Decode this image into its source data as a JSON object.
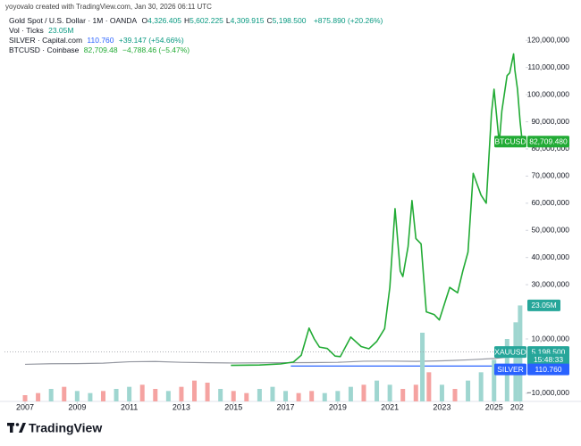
{
  "header": {
    "credit": "yoyovalo created with TradingView.com, Jan 30, 2026 06:11 UTC",
    "gold": {
      "name": "Gold Spot / U.S. Dollar · 1M · OANDA",
      "ohlc": [
        [
          "O",
          "4,326.405"
        ],
        [
          "H",
          "5,602.225"
        ],
        [
          "L",
          "4,309.915"
        ],
        [
          "C",
          "5,198.500"
        ]
      ],
      "change": "+875.890 (+20.26%)"
    },
    "volume": {
      "name": "Vol · Ticks",
      "value": "23.05M"
    },
    "silver": {
      "name": "SILVER · Capital.com",
      "value": "110.760",
      "change": "+39.147 (+54.66%)"
    },
    "btc": {
      "name": "BTCUSD · Coinbase",
      "value": "82,709.48",
      "change": "−4,788.46 (−5.47%)"
    }
  },
  "chart_data": {
    "type": "line",
    "grid": false,
    "xlim": [
      2006.21,
      2026.21
    ],
    "xticks": [
      2007,
      2009,
      2011,
      2013,
      2015,
      2017,
      2019,
      2021,
      2023,
      2025,
      {
        "value": 2026,
        "label": "202"
      }
    ],
    "ylim": [
      -13000000,
      125000000
    ],
    "yticks": [
      {
        "value": -10000000,
        "label": "−10,000,000"
      },
      {
        "value": 10000000,
        "label": "10,000,000"
      },
      {
        "value": 30000000,
        "label": "30,000,000"
      },
      {
        "value": 40000000,
        "label": "40,000,000"
      },
      {
        "value": 50000000,
        "label": "50,000,000"
      },
      {
        "value": 60000000,
        "label": "60,000,000"
      },
      {
        "value": 70000000,
        "label": "70,000,000"
      },
      {
        "value": 80000000,
        "label": "80,000,000"
      },
      {
        "value": 90000000,
        "label": "90,000,000"
      },
      {
        "value": 100000000,
        "label": "100,000,000"
      },
      {
        "value": 110000000,
        "label": "110,000,000"
      },
      {
        "value": 120000000,
        "label": "120,000,000"
      }
    ],
    "y2lim": [
      0,
      90000000
    ],
    "series": [
      {
        "name": "BTCUSD",
        "color": "#22ab35",
        "x": [
          2014.9,
          2016.0,
          2016.8,
          2017.3,
          2017.6,
          2017.9,
          2018.1,
          2018.3,
          2018.6,
          2018.9,
          2019.1,
          2019.5,
          2019.9,
          2020.2,
          2020.5,
          2020.8,
          2021.0,
          2021.2,
          2021.4,
          2021.5,
          2021.7,
          2021.85,
          2022.0,
          2022.2,
          2022.4,
          2022.7,
          2022.9,
          2023.1,
          2023.3,
          2023.6,
          2023.8,
          2024.0,
          2024.2,
          2024.5,
          2024.7,
          2024.9,
          2025.0,
          2025.2,
          2025.3,
          2025.5,
          2025.6,
          2025.75,
          2025.8,
          2025.9,
          2026.0,
          2026.08
        ],
        "values": [
          300000,
          400000,
          800000,
          1500000,
          4000000,
          14000000,
          10000000,
          7000000,
          6500000,
          3700000,
          3500000,
          10700000,
          7200000,
          6400000,
          9100000,
          13800000,
          29000000,
          58000000,
          35000000,
          33000000,
          44000000,
          61000000,
          47000000,
          45000000,
          20000000,
          19000000,
          17000000,
          23000000,
          29000000,
          27000000,
          35000000,
          42000000,
          71000000,
          63000000,
          60000000,
          93000000,
          102000000,
          82000000,
          94000000,
          107000000,
          108000000,
          115000000,
          109000000,
          102000000,
          90000000,
          82709480
        ],
        "value_labels": [
          null,
          null,
          null,
          null,
          null,
          null,
          null,
          null,
          null,
          null,
          null,
          null,
          null,
          null,
          null,
          null,
          null,
          null,
          null,
          null,
          null,
          null,
          null,
          null,
          null,
          null,
          null,
          null,
          null,
          null,
          null,
          null,
          null,
          null,
          null,
          null,
          null,
          null,
          null,
          null,
          null,
          null,
          null,
          null,
          null,
          "82,709.480"
        ]
      },
      {
        "name": "XAUUSD",
        "color": "#9598a1",
        "countdown": "15:48:33",
        "x": [
          2007,
          2008,
          2009,
          2010,
          2011,
          2012,
          2013,
          2014,
          2015,
          2016,
          2017,
          2018,
          2019,
          2020,
          2021,
          2022,
          2023,
          2024,
          2025,
          2025.5,
          2025.8,
          2026.08
        ],
        "values": [
          650000,
          880000,
          930000,
          1100000,
          1600000,
          1700000,
          1400000,
          1250000,
          1150000,
          1200000,
          1250000,
          1300000,
          1400000,
          1800000,
          1850000,
          1750000,
          1950000,
          2300000,
          2800000,
          3300000,
          4000000,
          5198500
        ],
        "value_labels": [
          null,
          null,
          null,
          null,
          null,
          null,
          null,
          null,
          null,
          null,
          null,
          null,
          null,
          null,
          null,
          null,
          null,
          null,
          null,
          null,
          null,
          "5,198.500"
        ]
      },
      {
        "name": "SILVER",
        "color": "#2962ff",
        "x": [
          2017.2,
          2018,
          2019,
          2020,
          2021,
          2022,
          2023,
          2024,
          2025,
          2025.5,
          2025.8,
          2026.08
        ],
        "values": [
          17000,
          16000,
          16000,
          18000,
          26000,
          22000,
          23000,
          23000,
          30000,
          36000,
          50000,
          110760
        ],
        "value_labels": [
          null,
          null,
          null,
          null,
          null,
          null,
          null,
          null,
          null,
          null,
          null,
          "110.760"
        ]
      },
      {
        "type": "bar",
        "axis": "y2",
        "x": [
          2007.0,
          2007.5,
          2008.0,
          2008.5,
          2009.0,
          2009.5,
          2010.0,
          2010.5,
          2011.0,
          2011.5,
          2012.0,
          2012.5,
          2013.0,
          2013.5,
          2014.0,
          2014.5,
          2015.0,
          2015.5,
          2016.0,
          2016.5,
          2017.0,
          2017.5,
          2018.0,
          2018.5,
          2019.0,
          2019.5,
          2020.0,
          2020.5,
          2021.0,
          2021.5,
          2022.0,
          2022.25,
          2022.5,
          2023.0,
          2023.5,
          2024.0,
          2024.5,
          2025.0,
          2025.5,
          2025.83,
          2026.0
        ],
        "values": [
          1500000,
          2000000,
          3000000,
          3500000,
          2500000,
          2000000,
          2500000,
          3000000,
          3500000,
          4000000,
          3000000,
          2500000,
          3500000,
          5000000,
          4500000,
          3000000,
          2500000,
          2000000,
          3000000,
          3500000,
          2500000,
          2000000,
          2500000,
          2000000,
          2500000,
          3500000,
          4000000,
          5000000,
          4000000,
          3000000,
          4000000,
          16500000,
          7000000,
          4000000,
          3000000,
          5000000,
          7000000,
          10000000,
          15000000,
          19000000,
          23050000
        ],
        "value_labels": [
          null,
          null,
          null,
          null,
          null,
          null,
          null,
          null,
          null,
          null,
          null,
          null,
          null,
          null,
          null,
          null,
          null,
          null,
          null,
          null,
          null,
          null,
          null,
          null,
          null,
          null,
          null,
          null,
          null,
          null,
          null,
          null,
          null,
          null,
          null,
          null,
          null,
          null,
          null,
          null,
          "23.05M"
        ],
        "colors": [
          "#f5a3a1",
          "#f5a3a1",
          "#9fd6d0",
          "#f5a3a1",
          "#9fd6d0",
          "#9fd6d0",
          "#f5a3a1",
          "#9fd6d0",
          "#9fd6d0",
          "#f5a3a1",
          "#f5a3a1",
          "#9fd6d0",
          "#f5a3a1",
          "#f5a3a1",
          "#f5a3a1",
          "#9fd6d0",
          "#f5a3a1",
          "#f5a3a1",
          "#9fd6d0",
          "#9fd6d0",
          "#9fd6d0",
          "#f5a3a1",
          "#f5a3a1",
          "#9fd6d0",
          "#9fd6d0",
          "#9fd6d0",
          "#f5a3a1",
          "#9fd6d0",
          "#9fd6d0",
          "#f5a3a1",
          "#f5a3a1",
          "#9fd6d0",
          "#f5a3a1",
          "#9fd6d0",
          "#f5a3a1",
          "#9fd6d0",
          "#9fd6d0",
          "#9fd6d0",
          "#9fd6d0",
          "#9fd6d0",
          "#9fd6d0"
        ]
      }
    ]
  },
  "footer": {
    "brand": "TradingView"
  }
}
